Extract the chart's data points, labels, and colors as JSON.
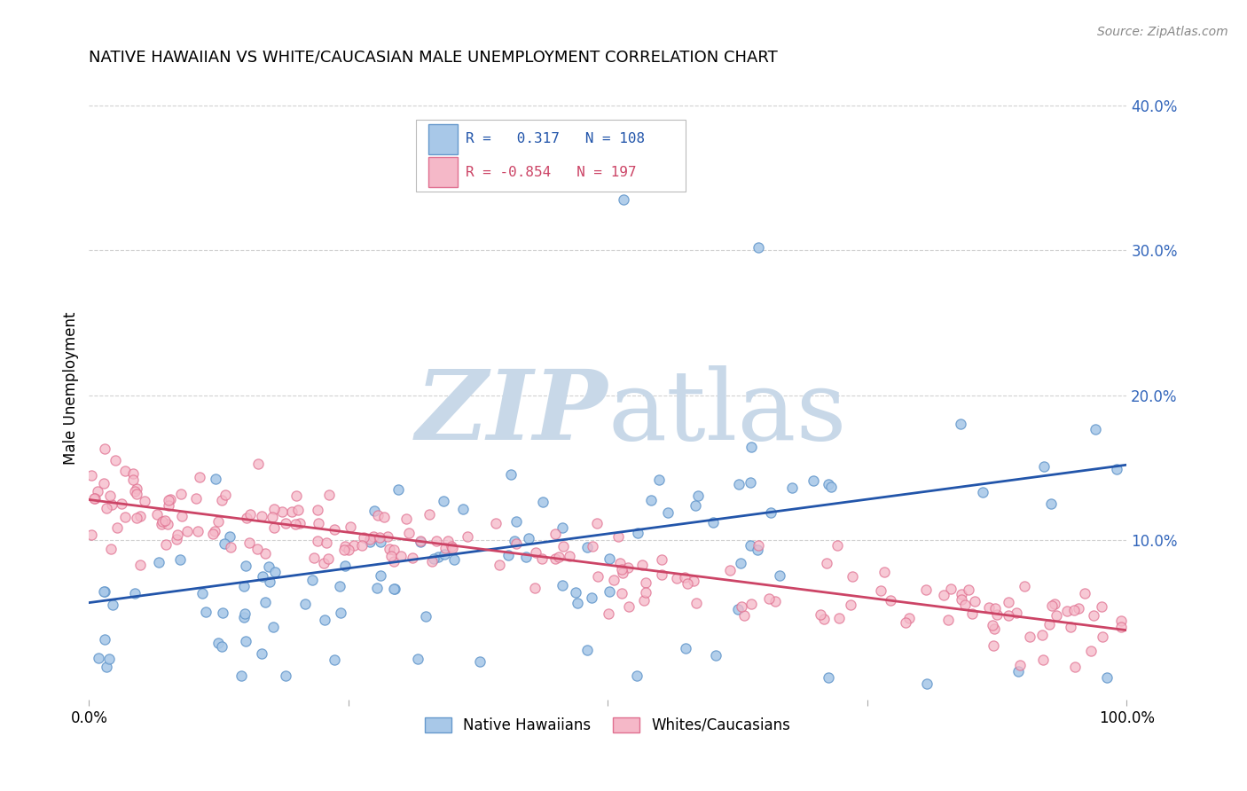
{
  "title": "NATIVE HAWAIIAN VS WHITE/CAUCASIAN MALE UNEMPLOYMENT CORRELATION CHART",
  "source": "Source: ZipAtlas.com",
  "ylabel": "Male Unemployment",
  "blue_R": 0.317,
  "blue_N": 108,
  "pink_R": -0.854,
  "pink_N": 197,
  "blue_marker_face": "#a8c8e8",
  "blue_marker_edge": "#6699cc",
  "pink_marker_face": "#f5b8c8",
  "pink_marker_edge": "#e07090",
  "blue_line_color": "#2255aa",
  "pink_line_color": "#cc4466",
  "ytick_color": "#3366bb",
  "watermark_zip_color": "#c8d8e8",
  "watermark_atlas_color": "#c8d8e8",
  "legend_label_blue": "Native Hawaiians",
  "legend_label_pink": "Whites/Caucasians",
  "xlim": [
    0.0,
    1.0
  ],
  "ylim": [
    -0.01,
    0.42
  ],
  "blue_slope": 0.095,
  "blue_intercept": 0.057,
  "pink_slope": -0.09,
  "pink_intercept": 0.128,
  "grid_color": "#cccccc",
  "title_fontsize": 13,
  "source_color": "#888888"
}
